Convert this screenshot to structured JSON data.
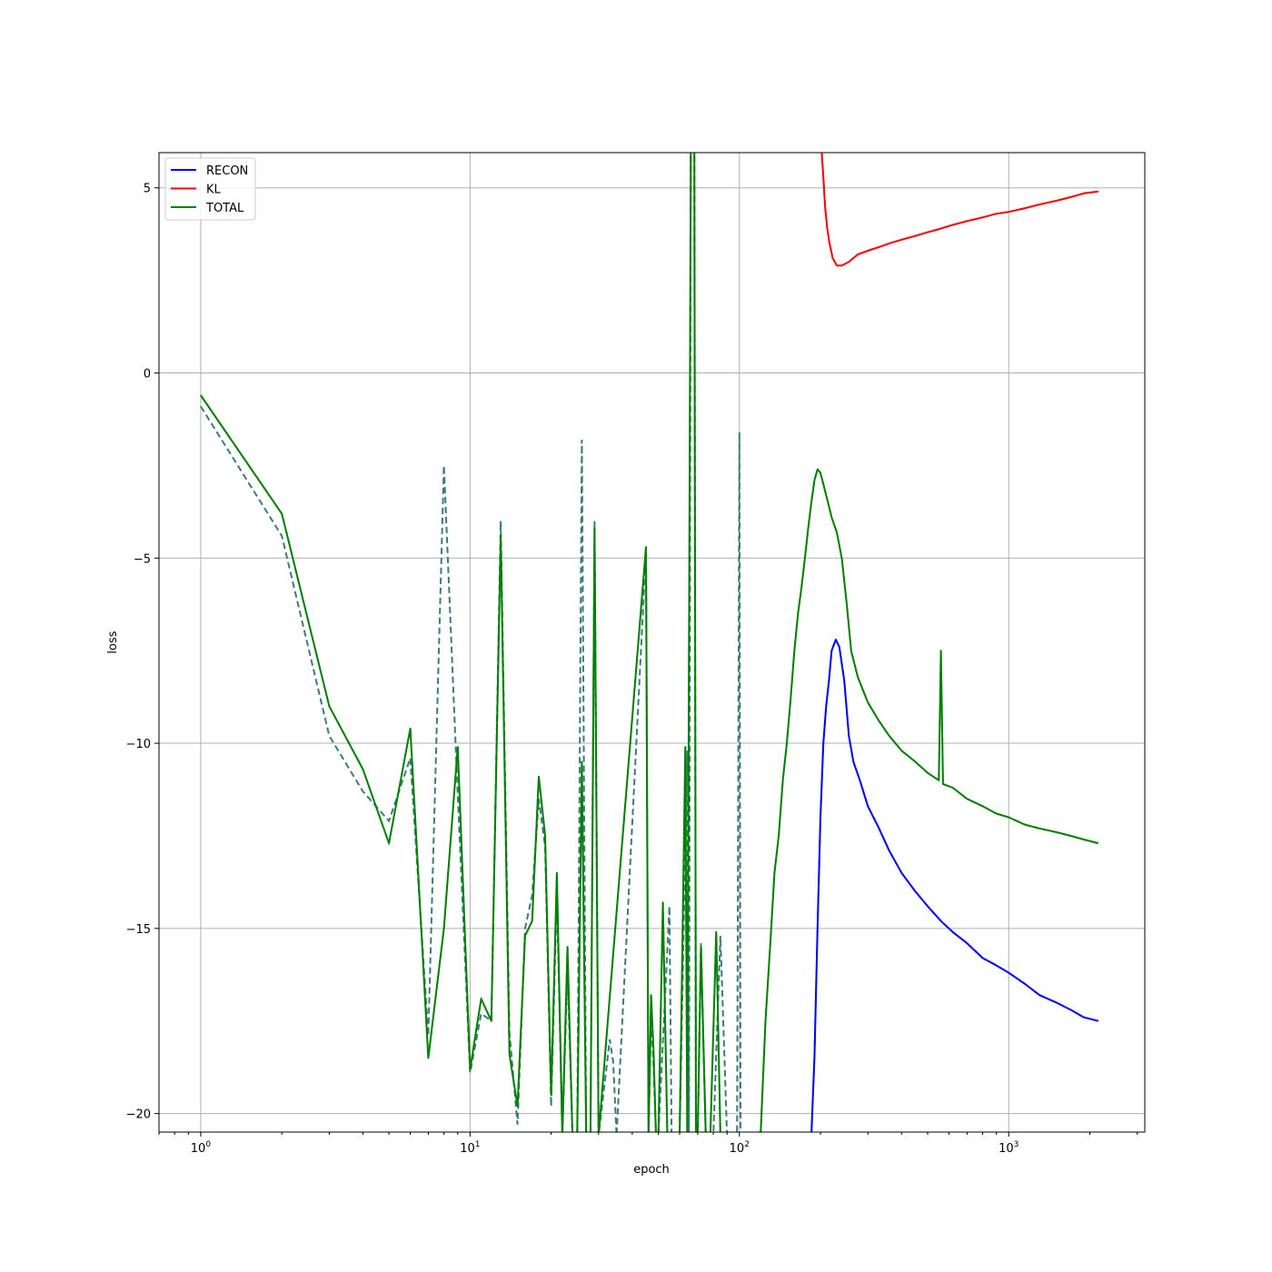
{
  "chart_data": {
    "type": "line",
    "title": "",
    "xlabel": "epoch",
    "ylabel": "loss",
    "xscale": "log",
    "xlim": [
      0.7,
      3200
    ],
    "ylim": [
      -20.5,
      5.95
    ],
    "grid": true,
    "legend_position": "top-left",
    "x_ticks": [
      {
        "value": 1,
        "base": "10",
        "exp": "0"
      },
      {
        "value": 10,
        "base": "10",
        "exp": "1"
      },
      {
        "value": 100,
        "base": "10",
        "exp": "2"
      },
      {
        "value": 1000,
        "base": "10",
        "exp": "3"
      }
    ],
    "y_ticks": [
      {
        "value": 5,
        "label": "5"
      },
      {
        "value": 0,
        "label": "0"
      },
      {
        "value": -5,
        "label": "−5"
      },
      {
        "value": -10,
        "label": "−10"
      },
      {
        "value": -15,
        "label": "−15"
      },
      {
        "value": -20,
        "label": "−20"
      }
    ],
    "colors": {
      "recon": "#0000ff",
      "kl": "#ff0000",
      "total": "#008000",
      "total_val": "#3d7a7a",
      "grid": "#b0b0b0"
    },
    "series": [
      {
        "name": "RECON",
        "color": "#0000ff",
        "x": [
          185,
          190,
          195,
          200,
          205,
          210,
          215,
          220,
          228,
          235,
          245,
          255,
          265,
          280,
          300,
          330,
          360,
          400,
          450,
          500,
          560,
          620,
          700,
          800,
          900,
          1000,
          1150,
          1300,
          1500,
          1700,
          1900,
          2150
        ],
        "y": [
          -20.6,
          -18.5,
          -15,
          -12,
          -10,
          -9,
          -8.3,
          -7.5,
          -7.2,
          -7.4,
          -8.3,
          -9.8,
          -10.5,
          -11.0,
          -11.7,
          -12.3,
          -12.9,
          -13.5,
          -14.0,
          -14.4,
          -14.8,
          -15.1,
          -15.4,
          -15.8,
          -16.0,
          -16.2,
          -16.5,
          -16.8,
          -17.0,
          -17.2,
          -17.4,
          -17.5
        ]
      },
      {
        "name": "KL",
        "color": "#ff0000",
        "x": [
          202,
          205,
          208,
          212,
          216,
          222,
          230,
          240,
          255,
          275,
          300,
          330,
          360,
          400,
          450,
          500,
          560,
          620,
          700,
          800,
          900,
          1000,
          1150,
          1300,
          1500,
          1700,
          1900,
          2150
        ],
        "y": [
          6.0,
          5.3,
          4.5,
          3.9,
          3.5,
          3.1,
          2.9,
          2.9,
          3.0,
          3.2,
          3.3,
          3.4,
          3.5,
          3.6,
          3.7,
          3.8,
          3.9,
          4.0,
          4.1,
          4.2,
          4.3,
          4.35,
          4.45,
          4.55,
          4.65,
          4.75,
          4.85,
          4.9
        ]
      },
      {
        "name": "TOTAL",
        "color": "#008000",
        "x": [
          1,
          2,
          3,
          4,
          5,
          6,
          7,
          8,
          9,
          10,
          11,
          12,
          13,
          14,
          15,
          16,
          17,
          18,
          19,
          20,
          21,
          22,
          23,
          24,
          25,
          26,
          27,
          28,
          29,
          30,
          45,
          46,
          47,
          48,
          49,
          50,
          52,
          54,
          55,
          57,
          60,
          63,
          64,
          66,
          68,
          69,
          70,
          72,
          75,
          78,
          82,
          85,
          90,
          95,
          100,
          120,
          125,
          130,
          135,
          140,
          145,
          150,
          155,
          160,
          165,
          170,
          175,
          180,
          185,
          190,
          195,
          200,
          205,
          210,
          215,
          220,
          230,
          240,
          250,
          260,
          275,
          300,
          330,
          360,
          400,
          450,
          500,
          550,
          560,
          570,
          620,
          700,
          800,
          900,
          1000,
          1150,
          1300,
          1500,
          1700,
          1900,
          2150
        ],
        "y": [
          -0.6,
          -3.8,
          -9.0,
          -10.7,
          -12.7,
          -9.6,
          -18.5,
          -15.0,
          -10.1,
          -18.8,
          -16.9,
          -17.5,
          -4.4,
          -18.4,
          -19.8,
          -15.2,
          -14.8,
          -10.9,
          -12.5,
          -19.5,
          -13.5,
          -20.6,
          -15.5,
          -20.6,
          -20.6,
          -10.5,
          -20.6,
          -20.6,
          -4.2,
          -20.6,
          -4.7,
          -20.6,
          -16.8,
          -18.3,
          -20.6,
          -20.6,
          -14.3,
          -20.6,
          -20.6,
          -20.6,
          -20.6,
          -10.1,
          -20.6,
          6.0,
          6.0,
          -20.6,
          -20.6,
          -15.5,
          -20.6,
          -20.6,
          -15.1,
          -20.6,
          -20.6,
          -20.6,
          -20.6,
          -20.5,
          -17.5,
          -15.5,
          -13.5,
          -12.5,
          -11.0,
          -10.0,
          -8.8,
          -7.5,
          -6.5,
          -5.8,
          -5.0,
          -4.2,
          -3.5,
          -2.9,
          -2.6,
          -2.7,
          -3.0,
          -3.3,
          -3.6,
          -3.9,
          -4.3,
          -5.0,
          -6.2,
          -7.5,
          -8.2,
          -8.9,
          -9.4,
          -9.8,
          -10.2,
          -10.5,
          -10.8,
          -11.0,
          -7.5,
          -11.1,
          -11.2,
          -11.5,
          -11.7,
          -11.9,
          -12.0,
          -12.2,
          -12.3,
          -12.4,
          -12.5,
          -12.6,
          -12.7
        ]
      },
      {
        "x": [
          1,
          2,
          3,
          4,
          5,
          6,
          7,
          8,
          9,
          10,
          11,
          12,
          13,
          14,
          15,
          16,
          17,
          18,
          19,
          20,
          21,
          22,
          23,
          24,
          25,
          26,
          27,
          28,
          29,
          30,
          33,
          34,
          35,
          45,
          46,
          47,
          48,
          49,
          50,
          55,
          56,
          57,
          60,
          64,
          65,
          66,
          68,
          69,
          70,
          72,
          75,
          80,
          85,
          90,
          95,
          98,
          100,
          101,
          120
        ],
        "y": [
          -0.9,
          -4.4,
          -9.8,
          -11.3,
          -12.1,
          -10.4,
          -17.9,
          -2.5,
          -11.4,
          -18.9,
          -17.3,
          -17.5,
          -4.0,
          -17.8,
          -20.3,
          -15.0,
          -14.1,
          -11.5,
          -12.8,
          -19.8,
          -14.0,
          -20.6,
          -16.1,
          -20.6,
          -20.6,
          -1.8,
          -20.6,
          -20.6,
          -4.0,
          -20.6,
          -18.0,
          -18.6,
          -20.6,
          -4.8,
          -20.6,
          -17.3,
          -18.7,
          -20.6,
          -20.6,
          -14.4,
          -20.6,
          -20.6,
          -20.6,
          -10.2,
          -20.6,
          6.0,
          6.0,
          -20.6,
          -20.6,
          -15.4,
          -20.6,
          -20.6,
          -15.2,
          -20.6,
          -20.6,
          -20.6,
          -1.6,
          -20.6,
          -20.6
        ]
      }
    ]
  }
}
